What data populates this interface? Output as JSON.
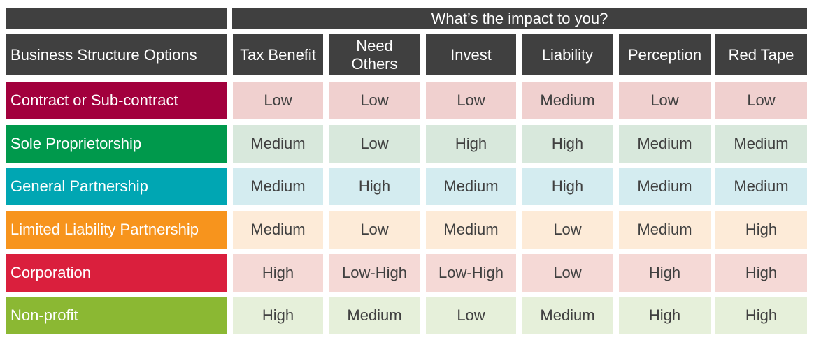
{
  "header": {
    "impact_title": "What’s the impact to you?",
    "options_label": "Business Structure Options",
    "columns": [
      "Tax Benefit",
      "Need Others",
      "Invest",
      "Liability",
      "Perception",
      "Red Tape"
    ]
  },
  "rows": [
    {
      "name": "Contract or Sub-contract",
      "values": [
        "Low",
        "Low",
        "Low",
        "Medium",
        "Low",
        "Low"
      ],
      "head_color": "#A2003D",
      "cell_color": "#F0D0CF"
    },
    {
      "name": "Sole Proprietorship",
      "values": [
        "Medium",
        "Low",
        "High",
        "High",
        "Medium",
        "Medium"
      ],
      "head_color": "#00994C",
      "cell_color": "#D8E8DC"
    },
    {
      "name": "General Partnership",
      "values": [
        "Medium",
        "High",
        "Medium",
        "High",
        "Medium",
        "Medium"
      ],
      "head_color": "#00A6B3",
      "cell_color": "#D4ECF0"
    },
    {
      "name": "Limited Liability Partnership",
      "values": [
        "Medium",
        "Low",
        "Medium",
        "Low",
        "Medium",
        "High"
      ],
      "head_color": "#F7941D",
      "cell_color": "#FDEBD8"
    },
    {
      "name": "Corporation",
      "values": [
        "High",
        "Low-High",
        "Low-High",
        "Low",
        "High",
        "High"
      ],
      "head_color": "#DA1F3D",
      "cell_color": "#F5D9D6"
    },
    {
      "name": "Non-profit",
      "values": [
        "High",
        "Medium",
        "Low",
        "Medium",
        "High",
        "High"
      ],
      "head_color": "#8BB833",
      "cell_color": "#E6F0DA"
    }
  ]
}
